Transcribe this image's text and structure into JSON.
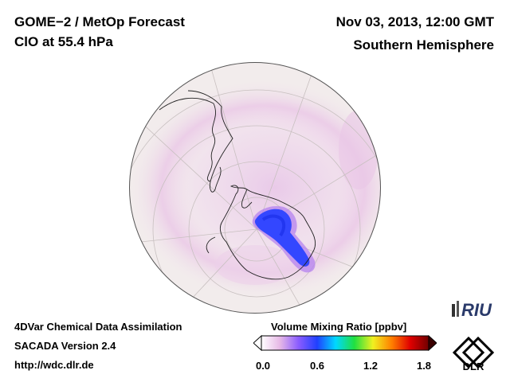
{
  "header": {
    "title_line1": "GOME−2 / MetOp Forecast",
    "title_line2": "ClO at 55.4 hPa",
    "date": "Nov 03, 2013, 12:00 GMT",
    "hemisphere": "Southern Hemisphere"
  },
  "footer": {
    "line1": "4DVar Chemical Data Assimilation",
    "line2": "SACADA Version 2.4",
    "line3": "http://wdc.dlr.de"
  },
  "colorbar": {
    "title": "Volume Mixing Ratio [ppbv]",
    "ticks": [
      "0.0",
      "0.6",
      "1.2",
      "1.8"
    ],
    "min": 0.0,
    "max": 1.8,
    "colors": [
      "#ffffff",
      "#e6b8e6",
      "#8a5cff",
      "#2040ff",
      "#00d8ff",
      "#20e040",
      "#f0f020",
      "#ff8000",
      "#e00000",
      "#700000"
    ]
  },
  "logos": {
    "riu": "RIU",
    "dlr": "DLR"
  },
  "map": {
    "background_color": "#f2ecec",
    "land_outline_color": "#222222",
    "clo_high_color": "#2244ff",
    "clo_low_color": "#e8b0e8"
  }
}
